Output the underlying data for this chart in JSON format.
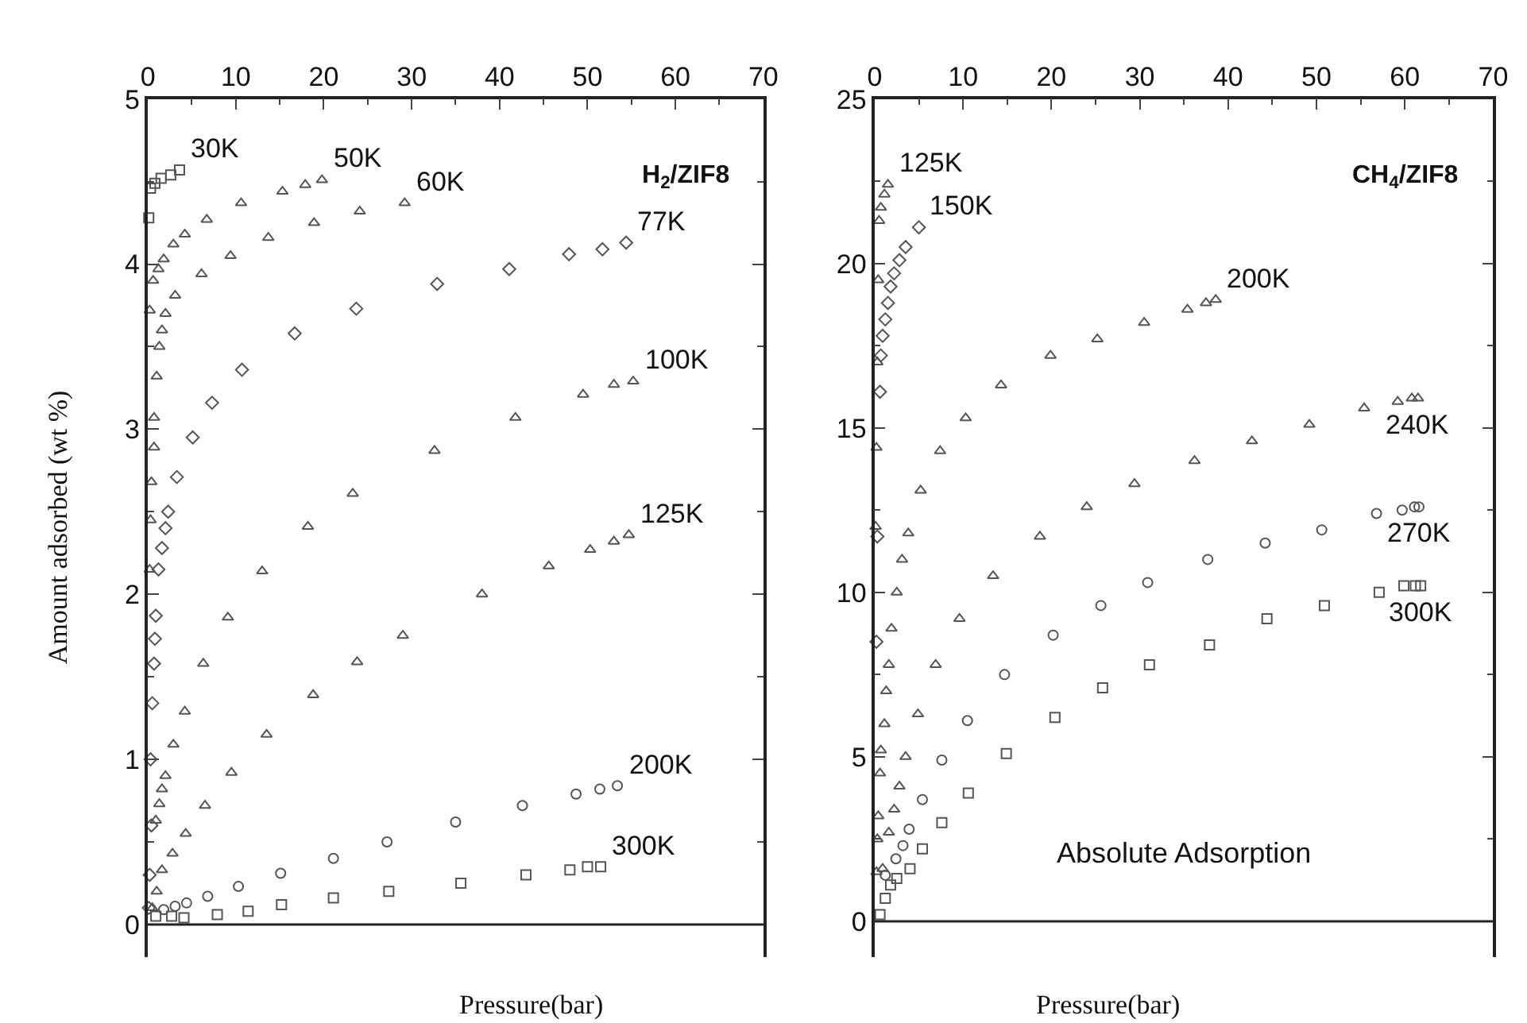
{
  "chart_data": [
    {
      "type": "scatter",
      "title": "H$_{2}$/ZIF8",
      "xlabel": "Pressure(bar)",
      "ylabel": "Amount adsorbed (wt %)",
      "xlim": [
        0,
        70
      ],
      "xticks": [
        0,
        10,
        20,
        30,
        40,
        50,
        60,
        70
      ],
      "ylim": [
        -0.2,
        5
      ],
      "yticks": [
        0,
        1,
        2,
        3,
        4,
        5
      ],
      "legend": false,
      "ref_lines": [
        {
          "axis": "y",
          "value": 0,
          "label": null
        }
      ],
      "series": [
        {
          "name": "30K",
          "color": "#555555",
          "marker": "square",
          "x": [
            0.1,
            0.3,
            0.8,
            1.5,
            2.6,
            3.6
          ],
          "values": [
            4.28,
            4.46,
            4.49,
            4.52,
            4.54,
            4.57
          ]
        },
        {
          "name": "50K",
          "color": "#555555",
          "marker": "triangle",
          "x": [
            0.2,
            0.6,
            1.2,
            1.8,
            2.9,
            4.2,
            6.7,
            10.6,
            15.3,
            17.9,
            19.8
          ],
          "values": [
            3.72,
            3.9,
            3.97,
            4.03,
            4.12,
            4.18,
            4.27,
            4.37,
            4.44,
            4.48,
            4.51
          ]
        },
        {
          "name": "60K",
          "color": "#555555",
          "marker": "triangle",
          "x": [
            0.2,
            0.3,
            0.4,
            0.7,
            0.7,
            1.0,
            1.3,
            1.6,
            2.0,
            3.1,
            6.1,
            9.4,
            13.7,
            18.9,
            24.1,
            29.2
          ],
          "values": [
            2.15,
            2.45,
            2.68,
            2.89,
            3.07,
            3.32,
            3.5,
            3.6,
            3.7,
            3.81,
            3.94,
            4.05,
            4.16,
            4.25,
            4.32,
            4.37
          ]
        },
        {
          "name": "77K",
          "color": "#555555",
          "marker": "diamond",
          "x": [
            0.1,
            0.2,
            0.4,
            0.3,
            0.5,
            0.7,
            0.8,
            0.9,
            1.2,
            1.6,
            2.0,
            2.3,
            3.3,
            5.1,
            7.3,
            10.7,
            16.7,
            23.7,
            32.9,
            41.1,
            47.9,
            51.7,
            54.4
          ],
          "values": [
            0.1,
            0.3,
            0.6,
            1.0,
            1.34,
            1.58,
            1.73,
            1.87,
            2.15,
            2.28,
            2.4,
            2.5,
            2.71,
            2.95,
            3.16,
            3.36,
            3.58,
            3.73,
            3.88,
            3.97,
            4.06,
            4.09,
            4.13
          ]
        },
        {
          "name": "100K",
          "color": "#555555",
          "marker": "triangle",
          "x": [
            0.9,
            1.3,
            1.6,
            2.0,
            2.9,
            4.2,
            6.3,
            9.1,
            13.0,
            18.2,
            23.3,
            32.6,
            41.8,
            49.5,
            53.0,
            55.2
          ],
          "values": [
            0.63,
            0.73,
            0.82,
            0.9,
            1.09,
            1.29,
            1.58,
            1.86,
            2.14,
            2.41,
            2.61,
            2.87,
            3.07,
            3.21,
            3.27,
            3.29
          ]
        },
        {
          "name": "125K",
          "color": "#555555",
          "marker": "triangle",
          "x": [
            0.5,
            1.0,
            1.6,
            2.8,
            4.3,
            6.5,
            9.5,
            13.5,
            18.8,
            23.8,
            29.0,
            38.0,
            45.6,
            50.3,
            53.0,
            54.7
          ],
          "values": [
            0.1,
            0.2,
            0.33,
            0.43,
            0.55,
            0.72,
            0.92,
            1.15,
            1.39,
            1.59,
            1.75,
            2.0,
            2.17,
            2.27,
            2.32,
            2.36
          ]
        },
        {
          "name": "200K",
          "color": "#555555",
          "marker": "circle",
          "x": [
            1.8,
            3.1,
            4.4,
            6.8,
            10.3,
            15.1,
            21.1,
            27.2,
            35.0,
            42.6,
            48.7,
            51.4,
            53.4
          ],
          "values": [
            0.09,
            0.11,
            0.13,
            0.17,
            0.23,
            0.31,
            0.4,
            0.5,
            0.62,
            0.72,
            0.79,
            0.82,
            0.84
          ]
        },
        {
          "name": "300K",
          "color": "#555555",
          "marker": "square",
          "x": [
            0.9,
            2.7,
            4.1,
            7.9,
            11.4,
            15.2,
            21.1,
            27.4,
            35.6,
            43.0,
            48.0,
            50.0,
            51.5
          ],
          "values": [
            0.05,
            0.05,
            0.04,
            0.06,
            0.08,
            0.12,
            0.16,
            0.2,
            0.25,
            0.3,
            0.33,
            0.35,
            0.35
          ]
        }
      ]
    },
    {
      "type": "scatter",
      "title": "CH$_{4}$/ZIF8",
      "xlabel": "Pressure(bar)",
      "xlim": [
        0,
        70
      ],
      "xticks": [
        0,
        10,
        20,
        30,
        40,
        50,
        60,
        70
      ],
      "ylim": [
        -1.1,
        25
      ],
      "yticks": [
        0,
        5,
        10,
        15,
        20,
        25
      ],
      "legend": false,
      "ref_lines": [
        {
          "axis": "y",
          "value": 0,
          "label": null
        }
      ],
      "annotations": [
        "Absolute Adsorption"
      ],
      "series": [
        {
          "name": "125K",
          "color": "#555555",
          "marker": "triangle",
          "x": [
            0.1,
            0.2,
            0.3,
            0.4,
            0.5,
            0.7,
            1.1,
            1.5
          ],
          "values": [
            12.0,
            14.4,
            17.0,
            19.5,
            21.3,
            21.7,
            22.1,
            22.4
          ]
        },
        {
          "name": "150K",
          "color": "#555555",
          "marker": "diamond",
          "x": [
            0.2,
            0.3,
            0.6,
            0.7,
            0.9,
            1.2,
            1.5,
            1.8,
            2.2,
            2.8,
            3.5,
            5.0
          ],
          "values": [
            8.5,
            11.7,
            16.1,
            17.2,
            17.8,
            18.3,
            18.8,
            19.3,
            19.7,
            20.1,
            20.5,
            21.1
          ]
        },
        {
          "name": "200K",
          "color": "#555555",
          "marker": "triangle",
          "x": [
            0.2,
            0.3,
            0.4,
            0.6,
            0.7,
            1.1,
            1.3,
            1.6,
            1.9,
            2.5,
            3.1,
            3.8,
            5.2,
            7.4,
            10.3,
            14.3,
            19.9,
            25.2,
            30.5,
            35.4,
            37.5,
            38.6
          ],
          "values": [
            1.5,
            2.5,
            3.2,
            4.5,
            5.2,
            6.0,
            7.0,
            7.8,
            8.9,
            10.0,
            11.0,
            11.8,
            13.1,
            14.3,
            15.3,
            16.3,
            17.2,
            17.7,
            18.2,
            18.6,
            18.8,
            18.9
          ]
        },
        {
          "name": "240K",
          "color": "#555555",
          "marker": "triangle",
          "x": [
            0.9,
            1.6,
            2.2,
            2.8,
            3.5,
            4.9,
            6.9,
            9.6,
            13.4,
            18.7,
            24.0,
            29.4,
            36.2,
            42.7,
            49.2,
            55.4,
            59.2,
            60.8,
            61.5
          ],
          "values": [
            1.6,
            2.7,
            3.4,
            4.1,
            5.0,
            6.3,
            7.8,
            9.2,
            10.5,
            11.7,
            12.6,
            13.3,
            14.0,
            14.6,
            15.1,
            15.6,
            15.8,
            15.9,
            15.9
          ]
        },
        {
          "name": "270K",
          "color": "#555555",
          "marker": "circle",
          "x": [
            1.2,
            2.4,
            3.2,
            3.9,
            5.4,
            7.6,
            10.5,
            14.7,
            20.2,
            25.6,
            30.9,
            37.7,
            44.2,
            50.6,
            56.8,
            59.7,
            61.1,
            61.6
          ],
          "values": [
            1.4,
            1.9,
            2.3,
            2.8,
            3.7,
            4.9,
            6.1,
            7.5,
            8.7,
            9.6,
            10.3,
            11.0,
            11.5,
            11.9,
            12.4,
            12.5,
            12.6,
            12.6
          ]
        },
        {
          "name": "300K",
          "color": "#555555",
          "marker": "square",
          "x": [
            0.6,
            1.2,
            1.8,
            2.5,
            4.0,
            5.4,
            7.6,
            10.6,
            14.9,
            20.4,
            25.8,
            31.1,
            37.9,
            44.4,
            50.9,
            57.1,
            59.9,
            61.2,
            61.8
          ],
          "values": [
            0.2,
            0.7,
            1.1,
            1.3,
            1.6,
            2.2,
            3.0,
            3.9,
            5.1,
            6.2,
            7.1,
            7.8,
            8.4,
            9.2,
            9.6,
            10.0,
            10.2,
            10.2,
            10.2
          ]
        }
      ]
    }
  ]
}
